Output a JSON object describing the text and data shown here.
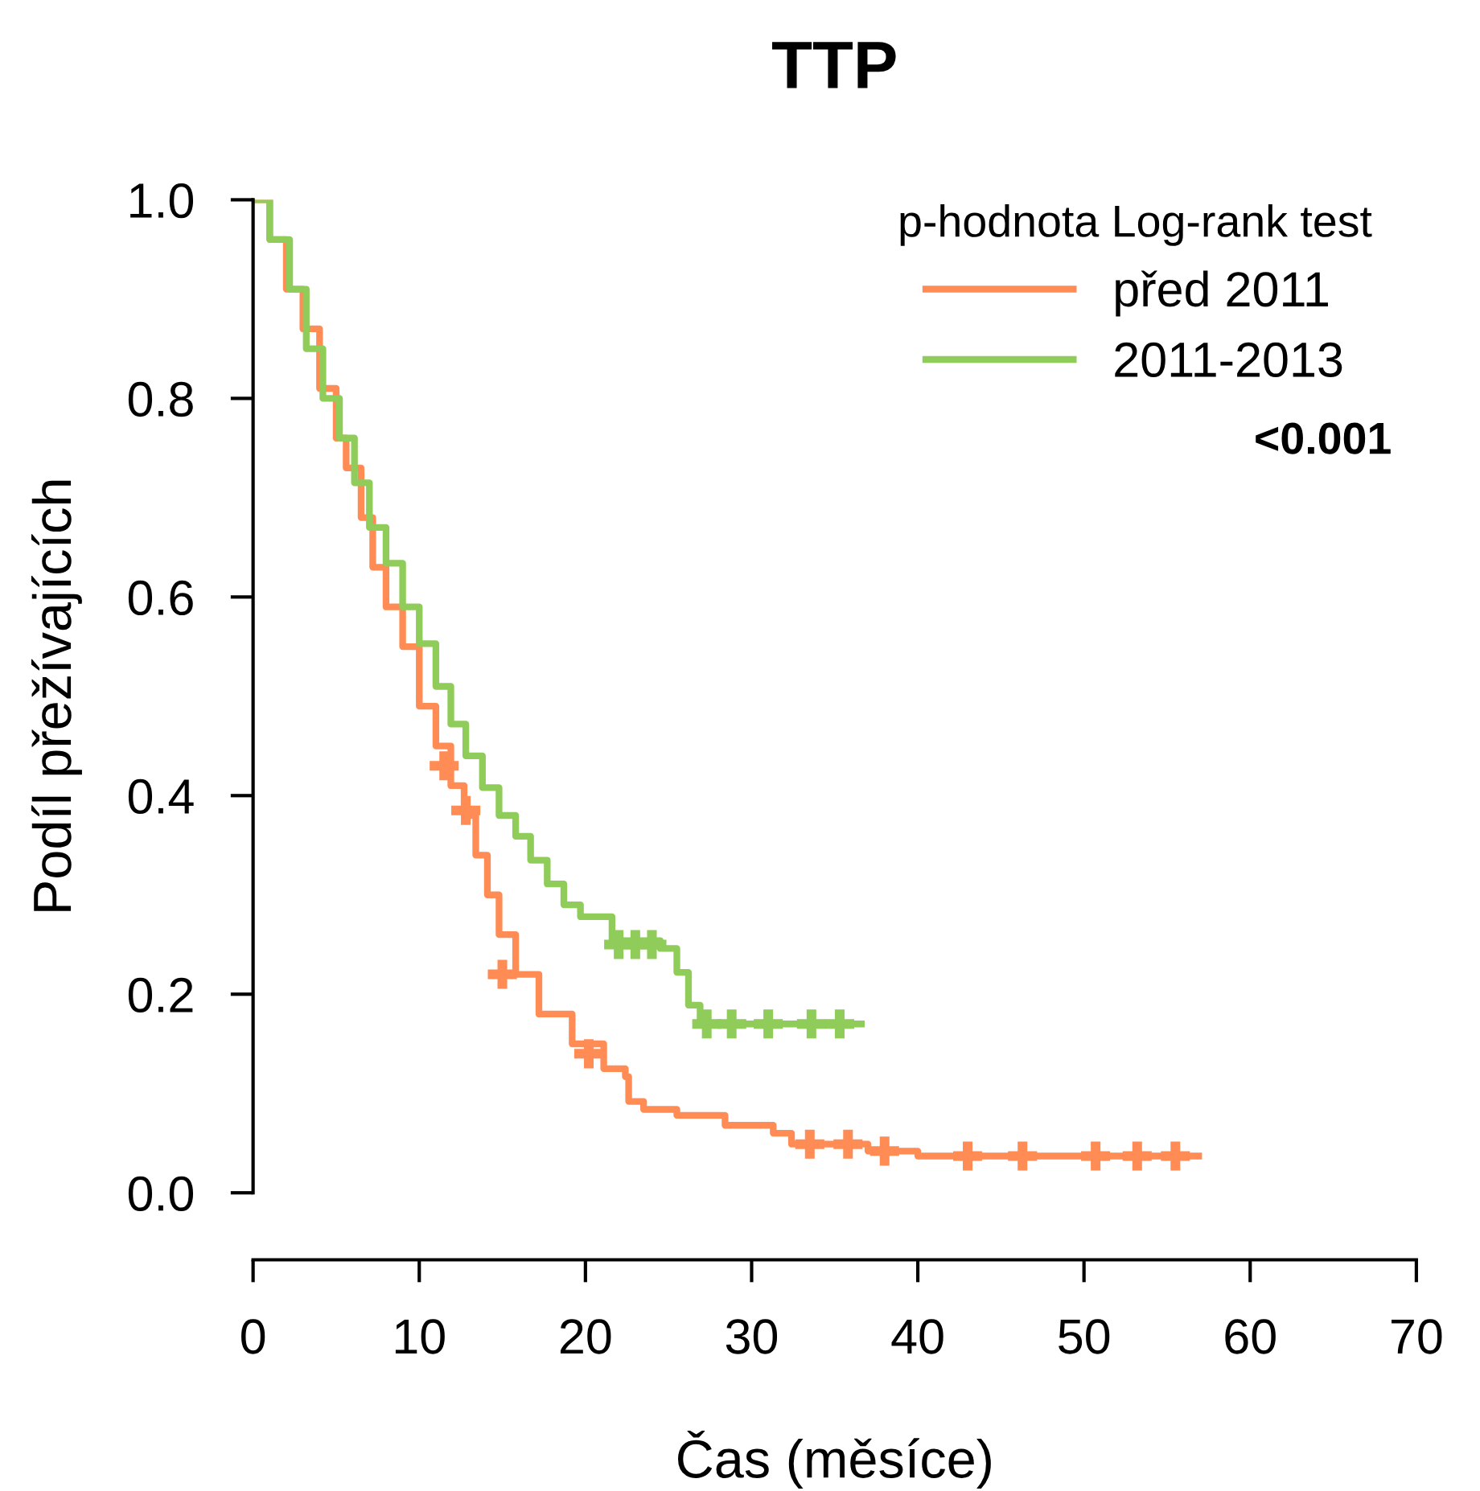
{
  "chart_data": {
    "type": "step",
    "title": "TTP",
    "xlabel": "Čas (měsíce)",
    "ylabel": "Podíl přežívajících",
    "legend_title": "p-hodnota Log-rank test",
    "annotations": [
      "<0.001"
    ],
    "xlim": [
      0,
      70
    ],
    "ylim": [
      0,
      1
    ],
    "xticks": [
      0,
      10,
      20,
      30,
      40,
      50,
      60,
      70
    ],
    "yticks": [
      {
        "value": 0,
        "label": "0.0"
      },
      {
        "value": 0.2,
        "label": "0.2"
      },
      {
        "value": 0.4,
        "label": "0.4"
      },
      {
        "value": 0.6,
        "label": "0.6"
      },
      {
        "value": 0.8,
        "label": "0.8"
      },
      {
        "value": 1,
        "label": "1.0"
      }
    ],
    "grid": false,
    "legend": "top right",
    "series": [
      {
        "name": "před 2011",
        "color": "#ff8c55",
        "x": [
          0,
          1,
          2,
          3,
          4,
          5,
          5.6,
          6.5,
          7.2,
          8.0,
          9,
          10,
          11,
          11.9,
          12.7,
          13.4,
          14.1,
          14.8,
          15.8,
          17.2,
          19.2,
          21.1,
          22.4,
          22.6,
          23.5,
          25.5,
          28.4,
          31.3,
          32.4,
          36.1,
          37,
          40,
          56.9
        ],
        "values": [
          1.0,
          0.96,
          0.91,
          0.87,
          0.81,
          0.76,
          0.73,
          0.68,
          0.63,
          0.59,
          0.55,
          0.49,
          0.45,
          0.41,
          0.38,
          0.34,
          0.3,
          0.26,
          0.22,
          0.18,
          0.15,
          0.125,
          0.117,
          0.092,
          0.084,
          0.078,
          0.068,
          0.06,
          0.049,
          0.049,
          0.042,
          0.037,
          0.037
        ]
      },
      {
        "name": "2011-2013",
        "color": "#8fcc5a",
        "x": [
          0,
          1,
          2.2,
          3.2,
          4.2,
          5.2,
          6.1,
          7,
          8,
          9,
          10,
          11,
          11.9,
          12.8,
          13.8,
          14.8,
          15.8,
          16.7,
          17.7,
          18.7,
          19.7,
          21.6,
          24.5,
          25.5,
          26.2,
          26.9,
          36.6
        ],
        "values": [
          1.0,
          0.96,
          0.91,
          0.85,
          0.8,
          0.76,
          0.715,
          0.67,
          0.634,
          0.59,
          0.553,
          0.51,
          0.472,
          0.44,
          0.408,
          0.38,
          0.359,
          0.335,
          0.311,
          0.29,
          0.278,
          0.254,
          0.246,
          0.222,
          0.189,
          0.17,
          0.17
        ]
      },
      {
        "type": "scatter",
        "marker": "cross",
        "color": "#ff8c55",
        "x": [
          11.5,
          12.8,
          15.0,
          20.2,
          33.5,
          35.8,
          38,
          43,
          46.3,
          50.7,
          53.2,
          55.5
        ],
        "values": [
          0.43,
          0.385,
          0.22,
          0.14,
          0.049,
          0.049,
          0.042,
          0.037,
          0.037,
          0.037,
          0.037,
          0.037
        ]
      },
      {
        "type": "scatter",
        "marker": "cross",
        "color": "#8fcc5a",
        "x": [
          22,
          23,
          24,
          27.3,
          28.8,
          31,
          33.6,
          35.3
        ],
        "values": [
          0.25,
          0.25,
          0.25,
          0.17,
          0.17,
          0.17,
          0.17,
          0.17
        ]
      }
    ]
  }
}
